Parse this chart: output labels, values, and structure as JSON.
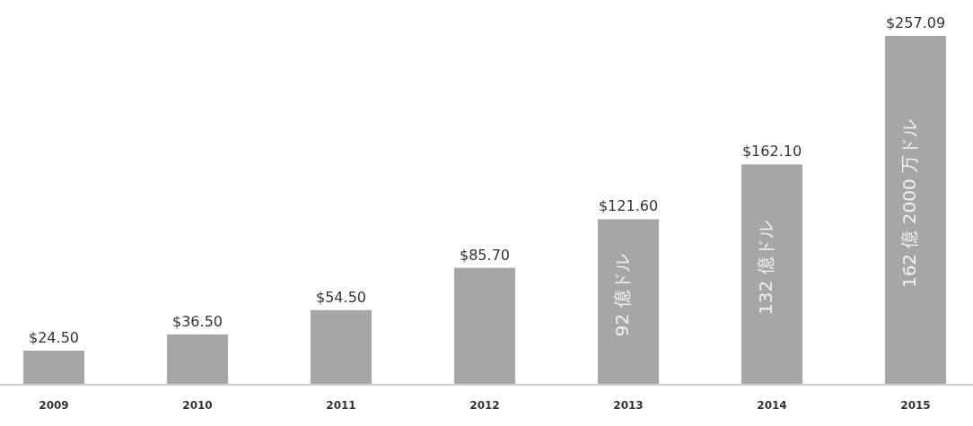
{
  "chart_data": {
    "type": "bar",
    "categories": [
      "2009",
      "2010",
      "2011",
      "2012",
      "2013",
      "2014",
      "2015"
    ],
    "values": [
      24.5,
      36.5,
      54.5,
      85.7,
      121.6,
      162.1,
      257.09
    ],
    "value_labels": [
      "$24.50",
      "$36.50",
      "$54.50",
      "$85.70",
      "$121.60",
      "$162.10",
      "$257.09"
    ],
    "color": "#a6a6a6",
    "annotations": [
      "92 億ドル",
      "132 億ドル",
      "162 億 2000 万ドル"
    ]
  }
}
